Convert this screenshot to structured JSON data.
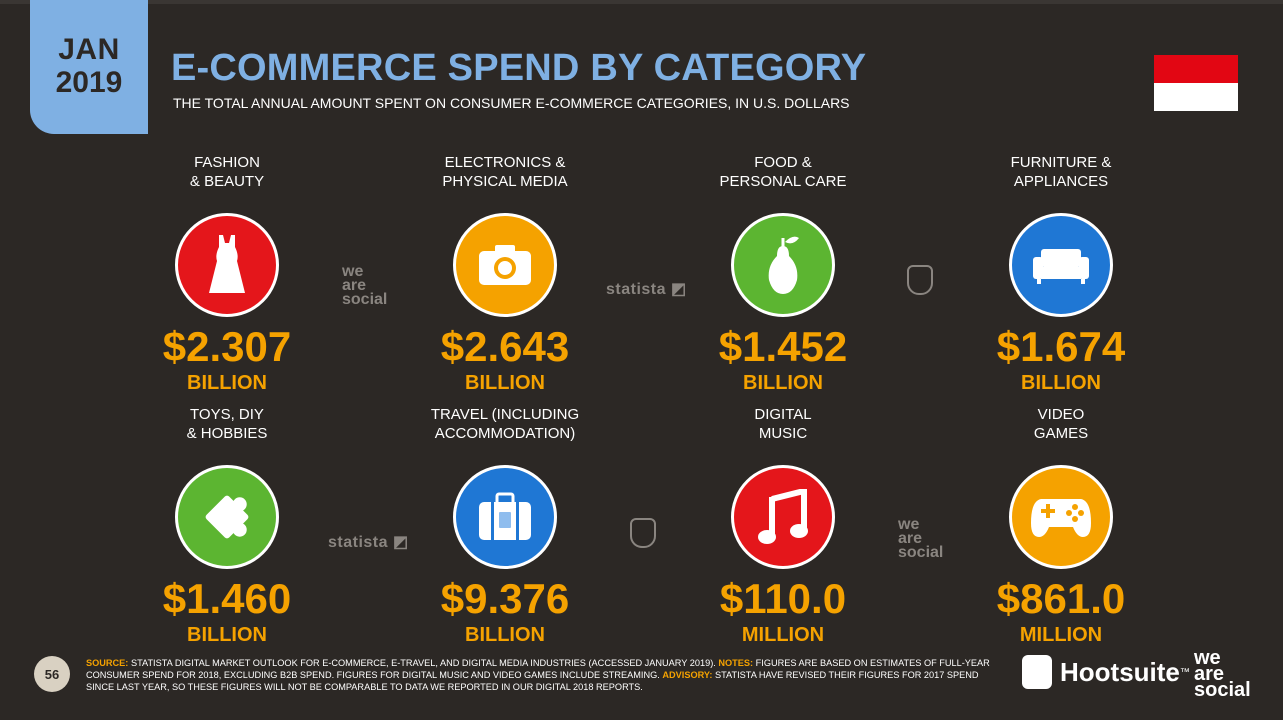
{
  "header": {
    "month": "JAN",
    "year": "2019",
    "title": "E-COMMERCE SPEND BY CATEGORY",
    "subtitle": "THE TOTAL ANNUAL AMOUNT SPENT ON CONSUMER E-COMMERCE CATEGORIES, IN U.S. DOLLARS"
  },
  "flag_colors": [
    "#e20613",
    "#ffffff"
  ],
  "categories": [
    {
      "line1": "FASHION",
      "line2": "& BEAUTY",
      "value": "$2.307",
      "unit": "BILLION",
      "color": "#e4161b",
      "icon": "dress-icon"
    },
    {
      "line1": "ELECTRONICS &",
      "line2": "PHYSICAL MEDIA",
      "value": "$2.643",
      "unit": "BILLION",
      "color": "#f5a200",
      "icon": "camera-icon"
    },
    {
      "line1": "FOOD &",
      "line2": "PERSONAL CARE",
      "value": "$1.452",
      "unit": "BILLION",
      "color": "#5cb531",
      "icon": "pear-icon"
    },
    {
      "line1": "FURNITURE &",
      "line2": "APPLIANCES",
      "value": "$1.674",
      "unit": "BILLION",
      "color": "#1f77d4",
      "icon": "sofa-icon"
    },
    {
      "line1": "TOYS, DIY",
      "line2": "& HOBBIES",
      "value": "$1.460",
      "unit": "BILLION",
      "color": "#5cb531",
      "icon": "puzzle-icon"
    },
    {
      "line1": "TRAVEL (INCLUDING",
      "line2": "ACCOMMODATION)",
      "value": "$9.376",
      "unit": "BILLION",
      "color": "#1f77d4",
      "icon": "suitcase-icon"
    },
    {
      "line1": "DIGITAL",
      "line2": "MUSIC",
      "value": "$110.0",
      "unit": "MILLION",
      "color": "#e4161b",
      "icon": "music-note-icon"
    },
    {
      "line1": "VIDEO",
      "line2": "GAMES",
      "value": "$861.0",
      "unit": "MILLION",
      "color": "#f5a200",
      "icon": "gamepad-icon"
    }
  ],
  "watermarks": {
    "we": "we",
    "are": "are",
    "social": "social",
    "statista": "statista"
  },
  "footer": {
    "page_number": "56",
    "source_label": "SOURCE:",
    "source_text": "STATISTA DIGITAL MARKET OUTLOOK FOR E-COMMERCE, E-TRAVEL, AND DIGITAL MEDIA INDUSTRIES (ACCESSED JANUARY 2019).",
    "notes_label": "NOTES:",
    "notes_text": "FIGURES ARE BASED ON ESTIMATES OF FULL-YEAR CONSUMER SPEND FOR 2018, EXCLUDING B2B SPEND. FIGURES FOR DIGITAL MUSIC AND VIDEO GAMES INCLUDE STREAMING.",
    "advisory_label": "ADVISORY:",
    "advisory_text": "STATISTA HAVE REVISED THEIR FIGURES FOR 2017 SPEND SINCE LAST YEAR, SO THESE FIGURES WILL NOT BE COMPARABLE TO DATA WE REPORTED IN OUR DIGITAL 2018 REPORTS."
  },
  "brand": {
    "hootsuite": "Hootsuite",
    "tm": "™",
    "we": "we",
    "are": "are",
    "social": "social"
  }
}
